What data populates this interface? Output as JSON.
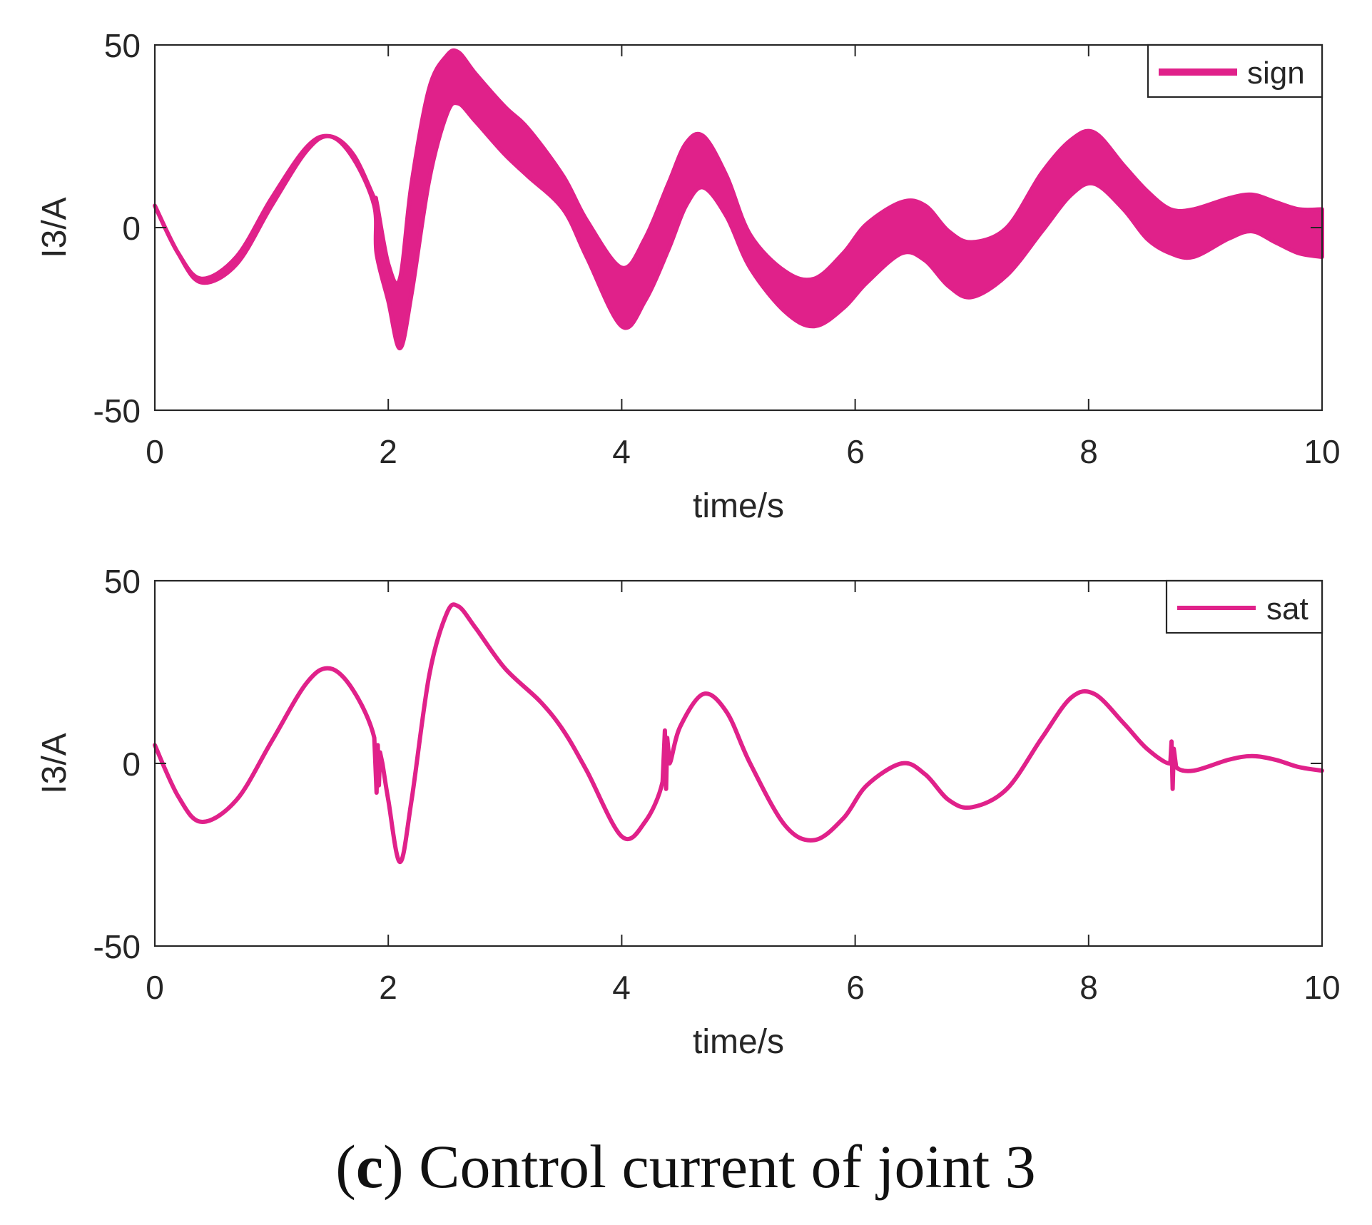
{
  "caption": {
    "open_paren": "(",
    "letter": "c",
    "rest": ") Control current of joint 3"
  },
  "line_color": "#E0218A",
  "chart_data": [
    {
      "type": "line",
      "xlabel": "time/s",
      "ylabel": "I3/A",
      "xlim": [
        0,
        10
      ],
      "ylim": [
        -50,
        50
      ],
      "xticks": [
        "0",
        "2",
        "4",
        "6",
        "8",
        "10"
      ],
      "yticks": [
        "50",
        "0",
        "-50"
      ],
      "legend": "sign",
      "legend_position": "top-right",
      "series": [
        {
          "name": "sign",
          "band": true,
          "x": [
            0,
            0.2,
            0.4,
            0.7,
            1.0,
            1.3,
            1.5,
            1.7,
            1.88,
            1.9,
            2.0,
            2.1,
            2.2,
            2.35,
            2.5,
            2.6,
            2.75,
            3.0,
            3.2,
            3.5,
            3.7,
            4.0,
            4.2,
            4.4,
            4.55,
            4.7,
            4.9,
            5.1,
            5.4,
            5.65,
            5.9,
            6.1,
            6.4,
            6.6,
            6.8,
            7.0,
            7.3,
            7.6,
            7.85,
            8.05,
            8.3,
            8.5,
            8.7,
            8.9,
            9.2,
            9.4,
            9.6,
            9.8,
            10.0
          ],
          "upper": [
            6,
            -7,
            -14,
            -8,
            8,
            22,
            25,
            20,
            8,
            7,
            -10,
            -14,
            12,
            38,
            47,
            48,
            42,
            33,
            27,
            14,
            2,
            -11,
            -3,
            12,
            23,
            25,
            14,
            -2,
            -12,
            -14,
            -7,
            1,
            7,
            6,
            -1,
            -4,
            0,
            15,
            24,
            26,
            17,
            10,
            5,
            5,
            8,
            9,
            7,
            5,
            5
          ],
          "lower": [
            6,
            -7,
            -15,
            -10,
            6,
            21,
            25,
            19,
            6,
            -7,
            -20,
            -33,
            -18,
            13,
            31,
            34,
            29,
            20,
            14,
            5,
            -8,
            -27,
            -20,
            -6,
            6,
            11,
            3,
            -11,
            -23,
            -27,
            -22,
            -15,
            -7,
            -9,
            -16,
            -19,
            -13,
            -1,
            9,
            12,
            5,
            -3,
            -7,
            -8,
            -3,
            -1,
            -4,
            -7,
            -8
          ]
        }
      ]
    },
    {
      "type": "line",
      "xlabel": "time/s",
      "ylabel": "I3/A",
      "xlim": [
        0,
        10
      ],
      "ylim": [
        -50,
        50
      ],
      "xticks": [
        "0",
        "2",
        "4",
        "6",
        "8",
        "10"
      ],
      "yticks": [
        "50",
        "0",
        "-50"
      ],
      "legend": "sat",
      "legend_position": "top-right",
      "series": [
        {
          "name": "sat",
          "x": [
            0,
            0.2,
            0.4,
            0.7,
            1.0,
            1.3,
            1.5,
            1.7,
            1.88,
            1.9,
            1.91,
            1.92,
            1.93,
            1.95,
            2.0,
            2.1,
            2.2,
            2.35,
            2.5,
            2.6,
            2.75,
            3.0,
            3.3,
            3.5,
            3.7,
            4.0,
            4.2,
            4.35,
            4.37,
            4.38,
            4.39,
            4.41,
            4.5,
            4.7,
            4.9,
            5.1,
            5.4,
            5.65,
            5.9,
            6.1,
            6.4,
            6.6,
            6.8,
            7.0,
            7.3,
            7.6,
            7.85,
            8.05,
            8.3,
            8.5,
            8.7,
            8.71,
            8.72,
            8.73,
            8.75,
            8.9,
            9.2,
            9.4,
            9.6,
            9.8,
            10.0
          ],
          "y": [
            5,
            -9,
            -16,
            -10,
            6,
            22,
            26,
            20,
            7,
            -8,
            5,
            -6,
            3,
            0,
            -10,
            -27,
            -10,
            24,
            41,
            43,
            37,
            26,
            17,
            9,
            -2,
            -20,
            -16,
            -5,
            9,
            -7,
            7,
            0,
            10,
            19,
            14,
            0,
            -17,
            -21,
            -15,
            -6,
            0,
            -3,
            -10,
            -12,
            -7,
            7,
            18,
            19,
            11,
            4,
            0,
            6,
            -7,
            4,
            -1,
            -2,
            1,
            2,
            1,
            -1,
            -2
          ]
        }
      ]
    }
  ]
}
